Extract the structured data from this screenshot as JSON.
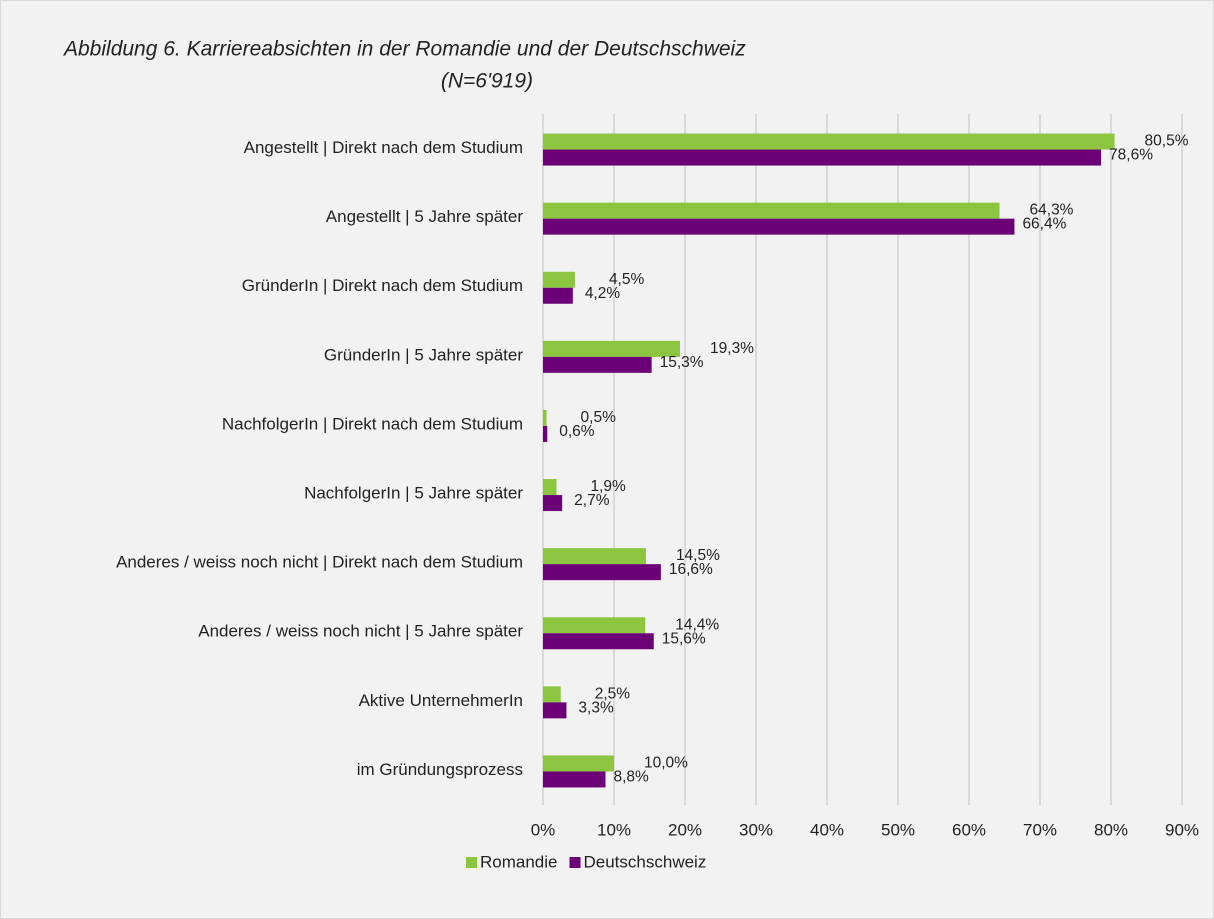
{
  "chart_data": {
    "type": "bar",
    "orientation": "horizontal",
    "title": "Abbildung 6. Karriereabsichten in der Romandie und der Deutschschweiz",
    "subtitle": "(N=6'919)",
    "categories": [
      "Angestellt | Direkt nach dem Studium",
      "Angestellt | 5 Jahre später",
      "GründerIn | Direkt nach dem Studium",
      "GründerIn | 5 Jahre später",
      "NachfolgerIn | Direkt nach dem Studium",
      "NachfolgerIn | 5 Jahre später",
      "Anderes / weiss noch nicht | Direkt nach dem Studium",
      "Anderes / weiss noch nicht | 5 Jahre später",
      "Aktive UnternehmerIn",
      "im Gründungsprozess"
    ],
    "series": [
      {
        "name": "Romandie",
        "color": "#8cc63f",
        "values": [
          80.5,
          64.3,
          4.5,
          19.3,
          0.5,
          1.9,
          14.5,
          14.4,
          2.5,
          10.0
        ],
        "value_labels": [
          "80,5%",
          "64,3%",
          "4,5%",
          "19,3%",
          "0,5%",
          "1,9%",
          "14,5%",
          "14,4%",
          "2,5%",
          "10,0%"
        ]
      },
      {
        "name": "Deutschschweiz",
        "color": "#6b0077",
        "values": [
          78.6,
          66.4,
          4.2,
          15.3,
          0.6,
          2.7,
          16.6,
          15.6,
          3.3,
          8.8
        ],
        "value_labels": [
          "78,6%",
          "66,4%",
          "4,2%",
          "15,3%",
          "0,6%",
          "2,7%",
          "16,6%",
          "15,6%",
          "3,3%",
          "8,8%"
        ]
      }
    ],
    "xlim": [
      0,
      90
    ],
    "xticks": [
      {
        "value": 0,
        "label": "0%"
      },
      {
        "value": 10,
        "label": "10%"
      },
      {
        "value": 20,
        "label": "20%"
      },
      {
        "value": 30,
        "label": "30%"
      },
      {
        "value": 40,
        "label": "40%"
      },
      {
        "value": 50,
        "label": "50%"
      },
      {
        "value": 60,
        "label": "60%"
      },
      {
        "value": 70,
        "label": "70%"
      },
      {
        "value": 80,
        "label": "80%"
      },
      {
        "value": 90,
        "label": "90%"
      }
    ],
    "grid": true,
    "legend": "bottom"
  }
}
